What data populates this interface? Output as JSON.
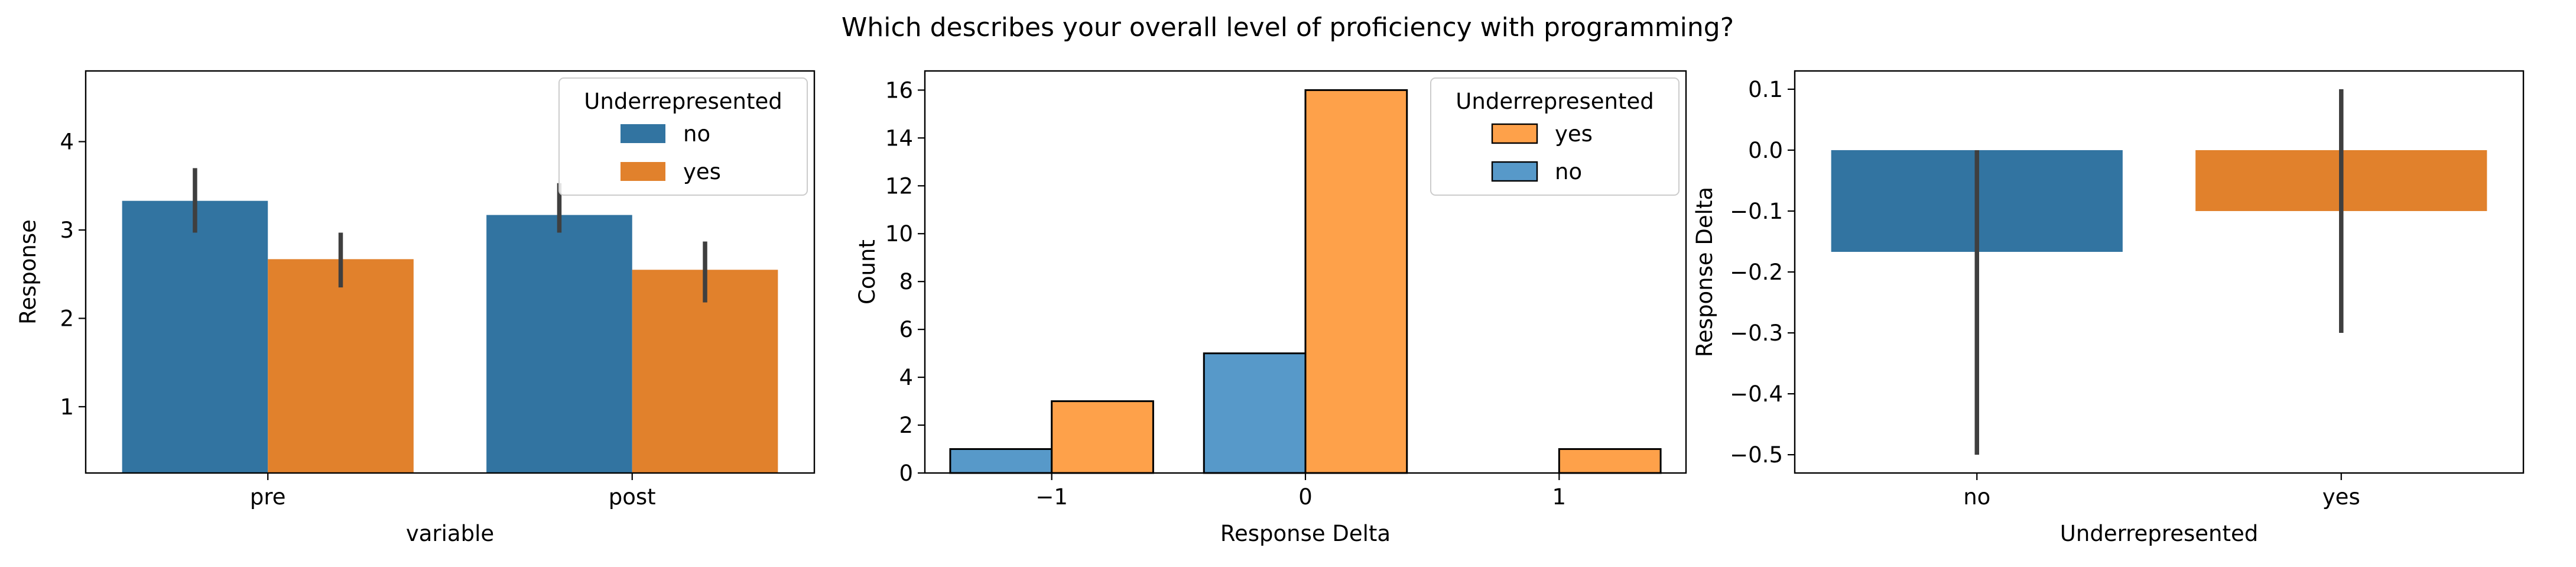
{
  "figure": {
    "suptitle": "Which describes your overall level of proficiency with programming?"
  },
  "colors": {
    "no": "#3274a1",
    "yes": "#e1812c",
    "hist_no": "#5799c9",
    "hist_yes": "#fea14a",
    "errorbar": "#3f3f3f"
  },
  "chart_data": [
    {
      "type": "bar",
      "title": "",
      "xlabel": "variable",
      "ylabel": "Response",
      "categories": [
        "pre",
        "post"
      ],
      "ylim": [
        0.25,
        4.8
      ],
      "yticks": [
        1,
        2,
        3,
        4
      ],
      "series": [
        {
          "name": "no",
          "values": [
            3.33,
            3.17
          ],
          "ci_low": [
            2.97,
            2.97
          ],
          "ci_high": [
            3.7,
            3.53
          ]
        },
        {
          "name": "yes",
          "values": [
            2.67,
            2.55
          ],
          "ci_low": [
            2.35,
            2.18
          ],
          "ci_high": [
            2.97,
            2.87
          ]
        }
      ],
      "legend": {
        "title": "Underrepresented",
        "entries": [
          "no",
          "yes"
        ],
        "placement": "upper right"
      },
      "grid": false
    },
    {
      "type": "bar",
      "title": "",
      "xlabel": "Response Delta",
      "ylabel": "Count",
      "categories": [
        "−1",
        "0",
        "1"
      ],
      "ylim": [
        0,
        16.8
      ],
      "yticks": [
        0,
        2,
        4,
        6,
        8,
        10,
        12,
        14,
        16
      ],
      "series": [
        {
          "name": "no",
          "values": [
            1,
            5,
            0
          ]
        },
        {
          "name": "yes",
          "values": [
            3,
            16,
            1
          ]
        }
      ],
      "legend": {
        "title": "Underrepresented",
        "entries": [
          "yes",
          "no"
        ],
        "placement": "upper right"
      },
      "grid": false
    },
    {
      "type": "bar",
      "title": "",
      "xlabel": "Underrepresented",
      "ylabel": "Response Delta",
      "categories": [
        "no",
        "yes"
      ],
      "ylim": [
        -0.53,
        0.13
      ],
      "yticks": [
        -0.5,
        -0.4,
        -0.3,
        -0.2,
        -0.1,
        0.0,
        0.1
      ],
      "ytick_labels": [
        "−0.5",
        "−0.4",
        "−0.3",
        "−0.2",
        "−0.1",
        "0.0",
        "0.1"
      ],
      "values": [
        -0.167,
        -0.1
      ],
      "ci_low": [
        -0.5,
        -0.3
      ],
      "ci_high": [
        0.0,
        0.1
      ],
      "grid": false
    }
  ]
}
